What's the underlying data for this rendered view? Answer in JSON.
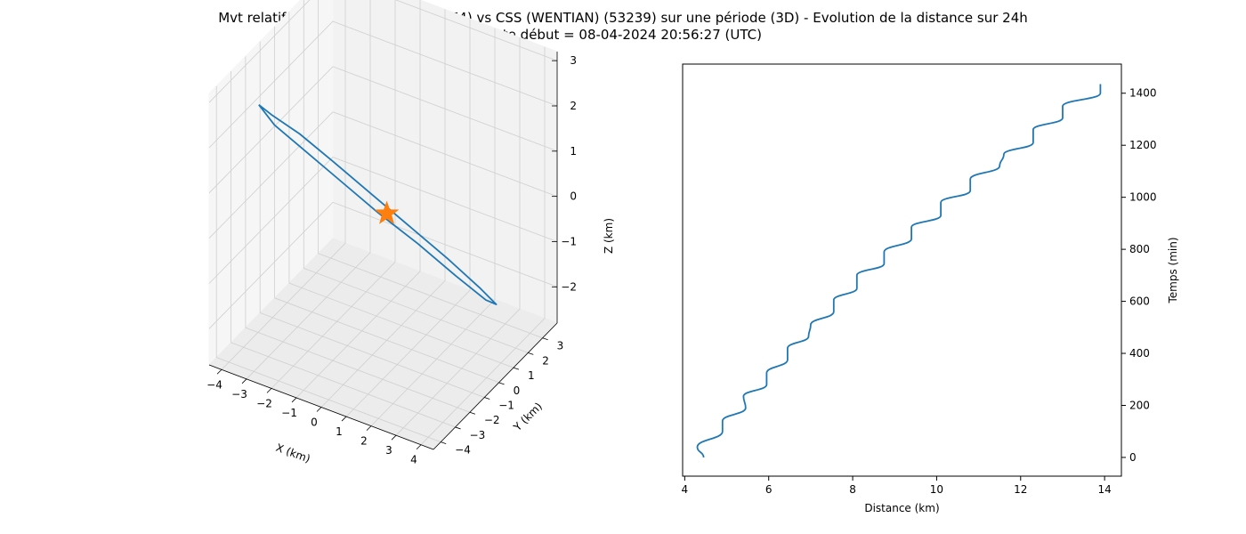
{
  "title_line1": "Mvt relatif de CSS (TIANHE-1) (48274) vs CSS (WENTIAN) (53239) sur une période (3D) - Evolution de la distance sur 24h",
  "title_line2": "Date début = 08-04-2024 20:56:27 (UTC)",
  "colors": {
    "series": "#1f77b4",
    "marker": "#ff7f0e"
  },
  "chart_data": [
    {
      "type": "line3d",
      "xlabel": "X (km)",
      "ylabel": "Y (km)",
      "zlabel": "Z (km)",
      "xlim": [
        -4.5,
        4.5
      ],
      "ylim": [
        -4.5,
        4
      ],
      "zlim": [
        -2.8,
        3.2
      ],
      "xticks": [
        -4,
        -3,
        -2,
        -1,
        0,
        1,
        2,
        3,
        4
      ],
      "yticks": [
        -4,
        -3,
        -2,
        -1,
        0,
        1,
        2,
        3
      ],
      "zticks": [
        -2,
        -1,
        0,
        1,
        2,
        3
      ],
      "grid": true,
      "series": [
        {
          "trajectory_xyz": [
            [
              -3.5,
              -2.8,
              2.6
            ],
            [
              -3.2,
              -2.4,
              2.3
            ],
            [
              -2.5,
              -1.7,
              1.8
            ],
            [
              -1.6,
              -0.9,
              1.1
            ],
            [
              -0.6,
              0.0,
              0.3
            ],
            [
              0.4,
              0.9,
              -0.5
            ],
            [
              1.4,
              1.8,
              -1.3
            ],
            [
              2.3,
              2.5,
              -2.0
            ],
            [
              2.7,
              2.9,
              -2.4
            ],
            [
              2.4,
              2.7,
              -2.3
            ],
            [
              1.6,
              2.0,
              -1.7
            ],
            [
              0.6,
              1.1,
              -0.9
            ],
            [
              -0.4,
              0.1,
              -0.1
            ],
            [
              -1.4,
              -0.8,
              0.7
            ],
            [
              -2.4,
              -1.7,
              1.5
            ],
            [
              -3.1,
              -2.4,
              2.1
            ],
            [
              -3.5,
              -2.8,
              2.6
            ]
          ]
        }
      ],
      "marker_xyz": [
        0,
        0,
        0
      ],
      "marker_symbol": "star"
    },
    {
      "type": "line",
      "xlabel": "Distance (km)",
      "ylabel": "Temps (min)",
      "xlim": [
        3.95,
        14.4
      ],
      "ylim": [
        -72,
        1512
      ],
      "xticks": [
        4,
        6,
        8,
        10,
        12,
        14
      ],
      "yticks": [
        0,
        200,
        400,
        600,
        800,
        1000,
        1200,
        1400
      ],
      "y_axis_position": "right",
      "grid": false,
      "series": [
        {
          "time_min": [
            0,
            40,
            100,
            140,
            190,
            235,
            280,
            325,
            375,
            420,
            465,
            510,
            560,
            605,
            650,
            700,
            745,
            790,
            840,
            885,
            930,
            980,
            1025,
            1070,
            1120,
            1165,
            1210,
            1260,
            1305,
            1350,
            1400,
            1435
          ],
          "distance_km": [
            4.45,
            4.3,
            4.9,
            4.9,
            5.45,
            5.4,
            5.95,
            5.95,
            6.45,
            6.45,
            6.95,
            7.0,
            7.55,
            7.55,
            8.1,
            8.1,
            8.75,
            8.75,
            9.4,
            9.4,
            10.1,
            10.1,
            10.8,
            10.8,
            11.5,
            11.6,
            12.3,
            12.3,
            13.0,
            13.0,
            13.9,
            13.9
          ]
        }
      ]
    }
  ]
}
